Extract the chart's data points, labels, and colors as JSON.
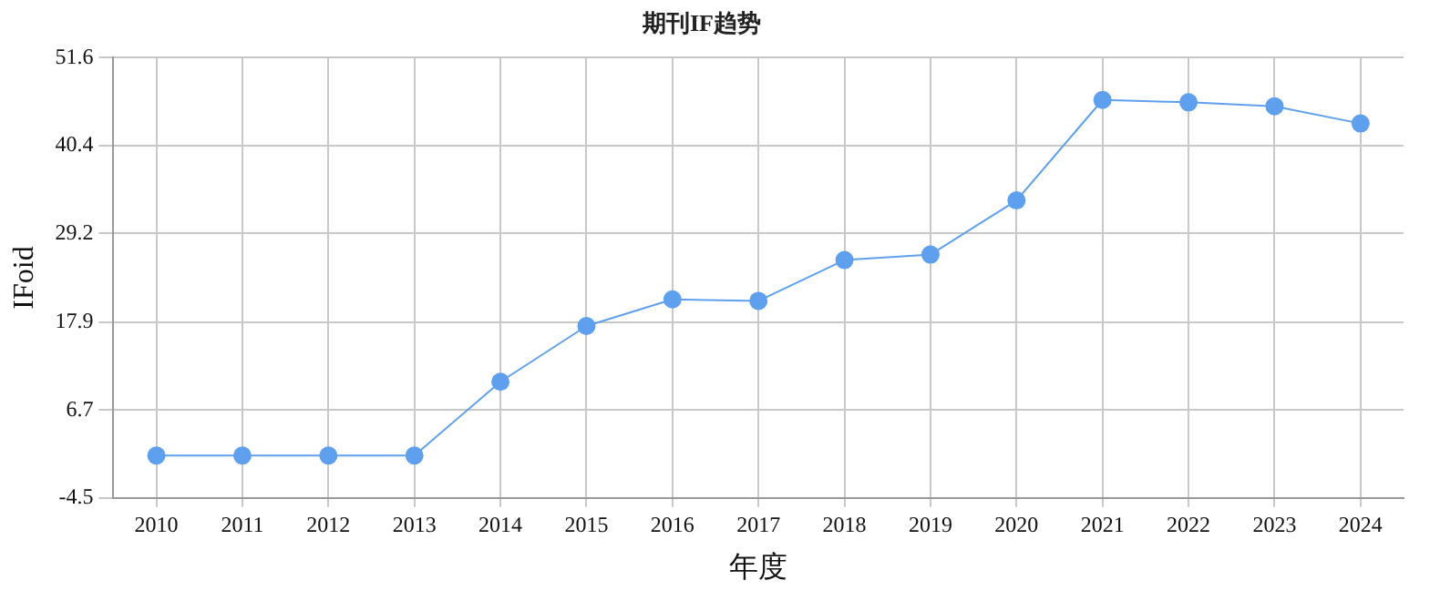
{
  "chart_data": {
    "type": "line",
    "title": "期刊IF趋势",
    "xlabel": "年度",
    "ylabel": "IFoid",
    "categories": [
      "2010",
      "2011",
      "2012",
      "2013",
      "2014",
      "2015",
      "2016",
      "2017",
      "2018",
      "2019",
      "2020",
      "2021",
      "2022",
      "2023",
      "2024"
    ],
    "series": [
      {
        "color": "#5fa0ee",
        "values": [
          0.9,
          0.9,
          0.9,
          0.9,
          10.3,
          17.4,
          20.8,
          20.6,
          25.8,
          26.5,
          33.4,
          46.2,
          45.9,
          45.4,
          43.2
        ]
      }
    ],
    "ylim": [
      -4.5,
      51.6
    ],
    "yticks": [
      -4.5,
      6.7,
      17.9,
      29.2,
      40.4,
      51.6
    ],
    "grid": true,
    "marker": "circle",
    "line_style": "solid",
    "legend": false
  }
}
